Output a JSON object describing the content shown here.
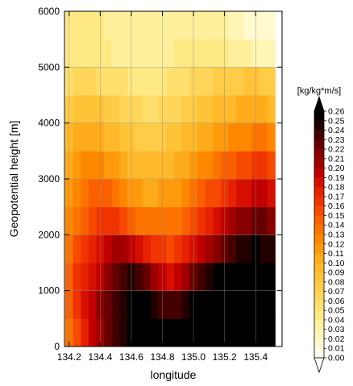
{
  "chart_data": {
    "type": "heatmap",
    "xlabel": "longitude",
    "ylabel": "Geopotential height [m]",
    "xlim": [
      134.17,
      135.57
    ],
    "ylim": [
      0,
      6000
    ],
    "grid": true,
    "x_ticks": [
      "134.2",
      "134.4",
      "134.6",
      "134.8",
      "135.0",
      "135.2",
      "135.4"
    ],
    "x_tick_values": [
      134.2,
      134.4,
      134.6,
      134.8,
      135.0,
      135.2,
      135.4
    ],
    "y_ticks": [
      "0",
      "1000",
      "2000",
      "3000",
      "4000",
      "5000",
      "6000"
    ],
    "y_tick_values": [
      0,
      1000,
      2000,
      3000,
      4000,
      5000,
      6000
    ],
    "colorbar": {
      "title": "[kg/kg*m/s]",
      "min": 0,
      "max": 0.26,
      "labels": [
        "0.26",
        "0.25",
        "0.24",
        "0.23",
        "0.22",
        "0.21",
        "0.20",
        "0.19",
        "0.18",
        "0.17",
        "0.16",
        "0.15",
        "0.14",
        "0.13",
        "0.12",
        "0.11",
        "0.10",
        "0.09",
        "0.08",
        "0.07",
        "0.06",
        "0.05",
        "0.04",
        "0.03",
        "0.02",
        "0.01",
        "0.00"
      ],
      "colors": [
        "#000000",
        "#220000",
        "#440000",
        "#660000",
        "#880000",
        "#a00000",
        "#c00000",
        "#d61000",
        "#e62200",
        "#f03400",
        "#f64a00",
        "#fa6000",
        "#fc7400",
        "#fd8800",
        "#fe9a0c",
        "#feab1c",
        "#ffb92a",
        "#ffc338",
        "#ffcc48",
        "#ffd65a",
        "#ffe06e",
        "#ffe984",
        "#fff09c",
        "#fff6b6",
        "#fffad0",
        "#fffde8",
        "#ffffff"
      ]
    },
    "x_centers": [
      134.2,
      134.25,
      134.3,
      134.35,
      134.4,
      134.45,
      134.5,
      134.55,
      134.6,
      134.65,
      134.7,
      134.75,
      134.8,
      134.85,
      134.9,
      134.95,
      135.0,
      135.05,
      135.1,
      135.15,
      135.2,
      135.25,
      135.3,
      135.35,
      135.4,
      135.45,
      135.5
    ],
    "y_centers": [
      250,
      750,
      1250,
      1750,
      2250,
      2750,
      3250,
      3750,
      4250,
      4750,
      5250,
      5750
    ],
    "values": [
      [
        0.14,
        0.16,
        0.18,
        0.2,
        0.21,
        0.23,
        0.24,
        0.25,
        0.26,
        0.26,
        0.26,
        0.26,
        0.26,
        0.26,
        0.26,
        0.26,
        0.26,
        0.26,
        0.26,
        0.26,
        0.26,
        0.26,
        0.26,
        0.26,
        0.26,
        0.26,
        0.26
      ],
      [
        0.15,
        0.17,
        0.19,
        0.2,
        0.22,
        0.23,
        0.24,
        0.25,
        0.26,
        0.26,
        0.26,
        0.25,
        0.24,
        0.24,
        0.24,
        0.25,
        0.26,
        0.26,
        0.26,
        0.26,
        0.26,
        0.26,
        0.26,
        0.26,
        0.26,
        0.26,
        0.26
      ],
      [
        0.15,
        0.17,
        0.18,
        0.19,
        0.2,
        0.22,
        0.23,
        0.24,
        0.25,
        0.24,
        0.23,
        0.21,
        0.2,
        0.19,
        0.2,
        0.21,
        0.23,
        0.24,
        0.25,
        0.26,
        0.26,
        0.26,
        0.26,
        0.26,
        0.26,
        0.26,
        0.26
      ],
      [
        0.14,
        0.16,
        0.17,
        0.18,
        0.19,
        0.2,
        0.21,
        0.21,
        0.2,
        0.19,
        0.18,
        0.17,
        0.17,
        0.16,
        0.17,
        0.18,
        0.19,
        0.2,
        0.21,
        0.22,
        0.23,
        0.24,
        0.25,
        0.25,
        0.26,
        0.25,
        0.25
      ],
      [
        0.13,
        0.14,
        0.15,
        0.16,
        0.17,
        0.17,
        0.17,
        0.16,
        0.15,
        0.14,
        0.14,
        0.14,
        0.14,
        0.14,
        0.14,
        0.15,
        0.16,
        0.17,
        0.18,
        0.19,
        0.2,
        0.21,
        0.22,
        0.22,
        0.23,
        0.23,
        0.22
      ],
      [
        0.12,
        0.13,
        0.14,
        0.15,
        0.15,
        0.15,
        0.14,
        0.13,
        0.12,
        0.12,
        0.11,
        0.11,
        0.12,
        0.12,
        0.12,
        0.13,
        0.14,
        0.15,
        0.16,
        0.16,
        0.17,
        0.18,
        0.19,
        0.19,
        0.2,
        0.2,
        0.19
      ],
      [
        0.11,
        0.12,
        0.13,
        0.13,
        0.13,
        0.12,
        0.12,
        0.11,
        0.1,
        0.1,
        0.1,
        0.1,
        0.1,
        0.1,
        0.11,
        0.11,
        0.12,
        0.13,
        0.13,
        0.14,
        0.15,
        0.15,
        0.16,
        0.16,
        0.17,
        0.17,
        0.16
      ],
      [
        0.1,
        0.11,
        0.11,
        0.11,
        0.11,
        0.1,
        0.1,
        0.09,
        0.09,
        0.08,
        0.08,
        0.08,
        0.08,
        0.09,
        0.09,
        0.1,
        0.1,
        0.11,
        0.11,
        0.12,
        0.12,
        0.13,
        0.13,
        0.13,
        0.14,
        0.14,
        0.13
      ],
      [
        0.08,
        0.09,
        0.09,
        0.09,
        0.09,
        0.08,
        0.08,
        0.07,
        0.07,
        0.07,
        0.06,
        0.06,
        0.07,
        0.07,
        0.07,
        0.08,
        0.08,
        0.09,
        0.09,
        0.1,
        0.1,
        0.1,
        0.11,
        0.11,
        0.11,
        0.11,
        0.1
      ],
      [
        0.06,
        0.07,
        0.07,
        0.07,
        0.06,
        0.06,
        0.06,
        0.06,
        0.05,
        0.05,
        0.05,
        0.05,
        0.05,
        0.06,
        0.06,
        0.06,
        0.07,
        0.07,
        0.07,
        0.08,
        0.08,
        0.08,
        0.08,
        0.09,
        0.09,
        0.08,
        0.08
      ],
      [
        0.05,
        0.05,
        0.05,
        0.05,
        0.05,
        0.05,
        0.04,
        0.04,
        0.04,
        0.04,
        0.04,
        0.04,
        0.04,
        0.04,
        0.05,
        0.05,
        0.05,
        0.05,
        0.05,
        0.05,
        0.05,
        0.04,
        0.04,
        0.04,
        0.03,
        0.03,
        0.03
      ],
      [
        0.05,
        0.05,
        0.05,
        0.05,
        0.05,
        0.04,
        0.04,
        0.04,
        0.04,
        0.04,
        0.04,
        0.04,
        0.04,
        0.04,
        0.04,
        0.04,
        0.04,
        0.04,
        0.04,
        0.04,
        0.04,
        0.03,
        0.03,
        0.02,
        0.02,
        0.02,
        0.02
      ]
    ]
  }
}
